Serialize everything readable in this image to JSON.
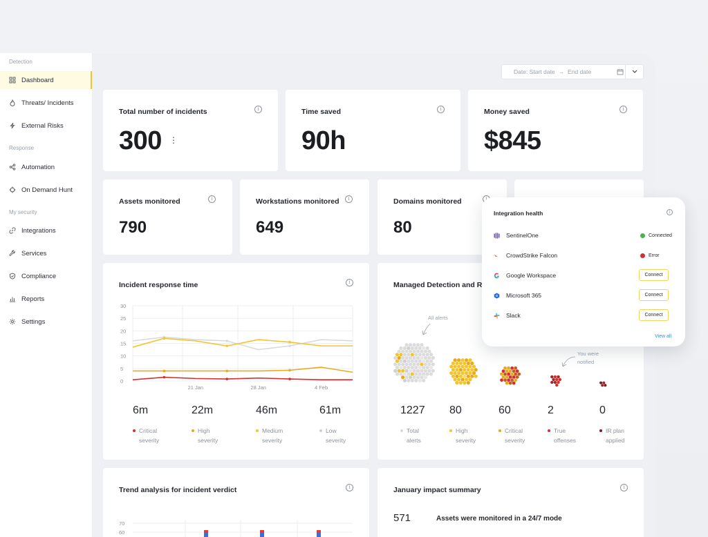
{
  "sidebar": {
    "sections": [
      {
        "title": "Detection",
        "items": [
          {
            "label": "Dashboard",
            "icon": "grid-icon",
            "active": true
          },
          {
            "label": "Threats/ Incidents",
            "icon": "flame-icon"
          },
          {
            "label": "External Risks",
            "icon": "bolt-icon"
          }
        ]
      },
      {
        "title": "Response",
        "items": [
          {
            "label": "Automation",
            "icon": "share-icon"
          },
          {
            "label": "On Demand Hunt",
            "icon": "crosshair-icon"
          }
        ]
      },
      {
        "title": "My security",
        "items": [
          {
            "label": "Integrations",
            "icon": "link-icon"
          },
          {
            "label": "Services",
            "icon": "wrench-icon"
          },
          {
            "label": "Compliance",
            "icon": "shield-icon"
          },
          {
            "label": "Reports",
            "icon": "bar-chart-icon"
          },
          {
            "label": "Settings",
            "icon": "gear-icon"
          }
        ]
      }
    ]
  },
  "daterange": {
    "start": "Date: Start date",
    "arrow": "→",
    "end": "End date"
  },
  "kpis": [
    {
      "title": "Total number of incidents",
      "value": "300",
      "more": "⋮"
    },
    {
      "title": "Time saved",
      "value": "90h"
    },
    {
      "title": "Money saved",
      "value": "$845"
    }
  ],
  "monitored": [
    {
      "title": "Assets monitored",
      "value": "790"
    },
    {
      "title": "Workstations monitored",
      "value": "649"
    },
    {
      "title": "Domains monitored",
      "value": "80"
    }
  ],
  "incident_response": {
    "title": "Incident response time",
    "stats": [
      {
        "value": "6m",
        "label1": "Critical",
        "label2": "severity",
        "color": "#d32f2f"
      },
      {
        "value": "22m",
        "label1": "High",
        "label2": "severity",
        "color": "#e8a91a"
      },
      {
        "value": "46m",
        "label1": "Medium",
        "label2": "severity",
        "color": "#f2c530"
      },
      {
        "value": "61m",
        "label1": "Low",
        "label2": "severity",
        "color": "#cfcfcf"
      }
    ]
  },
  "chart_data": {
    "type": "line",
    "x": [
      "",
      "",
      "21 Jan",
      "",
      "28 Jan",
      "",
      "4 Feb",
      ""
    ],
    "xlabels_shown": [
      "21 Jan",
      "28 Jan",
      "4 Feb"
    ],
    "ylim": [
      0,
      30
    ],
    "yticks": [
      0,
      5,
      10,
      15,
      20,
      25,
      30
    ],
    "grid": true,
    "series": [
      {
        "color": "#d9d9d9",
        "values": [
          16,
          17.5,
          16.5,
          16,
          12.5,
          14,
          16.5,
          16
        ]
      },
      {
        "color": "#f2c530",
        "values": [
          13.5,
          17,
          16,
          14,
          16.5,
          15.5,
          14,
          14
        ]
      },
      {
        "color": "#e8a91a",
        "values": [
          4,
          4,
          4,
          4,
          4,
          4.3,
          5.5,
          3.5
        ]
      },
      {
        "color": "#d32f2f",
        "values": [
          0.5,
          1.5,
          1,
          0.8,
          1.2,
          0.8,
          0.5,
          0.5
        ]
      }
    ]
  },
  "managed_detection": {
    "title": "Managed Detection and Res",
    "annotations": {
      "all_alerts": "All alerts",
      "you_were": "You were",
      "notified": "notified"
    },
    "stats": [
      {
        "value": "1227",
        "label1": "Total",
        "label2": "alerts",
        "color": "#d9d9d9"
      },
      {
        "value": "80",
        "label1": "High",
        "label2": "severity",
        "color": "#f2c530"
      },
      {
        "value": "60",
        "label1": "Critical",
        "label2": "severity",
        "color": "#e8a91a"
      },
      {
        "value": "2",
        "label1": "True",
        "label2": "offenses",
        "color": "#d32f2f"
      },
      {
        "value": "0",
        "label1": "IR plan",
        "label2": "applied",
        "color": "#7a1d1d"
      }
    ]
  },
  "integration_health": {
    "title": "Integration health",
    "rows": [
      {
        "name": "SentinelOne",
        "status": "Connected",
        "status_color": "#4caf50",
        "logo_color": "#6b3fd6"
      },
      {
        "name": "CrowdStrike Falcon",
        "status": "Error",
        "status_color": "#d32f2f",
        "logo_color": "#e53935"
      },
      {
        "name": "Google Workspace",
        "action": "Connect",
        "logo_color": "#4285f4"
      },
      {
        "name": "Microsoft 365",
        "action": "Connect",
        "logo_color": "#1e66d0"
      },
      {
        "name": "Slack",
        "action": "Connect",
        "logo_color": "#e01e5a"
      }
    ],
    "view_all": "View all"
  },
  "trend": {
    "title": "Trend analysis for incident verdict",
    "yticks": [
      "70",
      "60"
    ]
  },
  "impact": {
    "title": "January impact summary",
    "value": "571",
    "text": "Assets were monitored in a 24/7 mode"
  }
}
